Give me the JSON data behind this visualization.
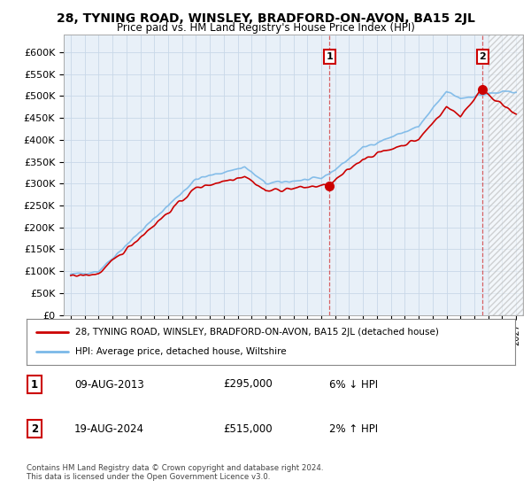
{
  "title": "28, TYNING ROAD, WINSLEY, BRADFORD-ON-AVON, BA15 2JL",
  "subtitle": "Price paid vs. HM Land Registry's House Price Index (HPI)",
  "ylabel_ticks": [
    "£0",
    "£50K",
    "£100K",
    "£150K",
    "£200K",
    "£250K",
    "£300K",
    "£350K",
    "£400K",
    "£450K",
    "£500K",
    "£550K",
    "£600K"
  ],
  "ylim": [
    0,
    620000
  ],
  "yticks": [
    0,
    50000,
    100000,
    150000,
    200000,
    250000,
    300000,
    350000,
    400000,
    450000,
    500000,
    550000,
    600000
  ],
  "sale1_year": 2013.6,
  "sale1_value": 295000,
  "sale2_year": 2024.6,
  "sale2_value": 515000,
  "hpi_color": "#7ab8e8",
  "price_color": "#cc0000",
  "grid_color": "#c8d8e8",
  "plot_bg": "#e8f0f8",
  "legend_label1": "28, TYNING ROAD, WINSLEY, BRADFORD-ON-AVON, BA15 2JL (detached house)",
  "legend_label2": "HPI: Average price, detached house, Wiltshire",
  "note1_label": "1",
  "note1_date": "09-AUG-2013",
  "note1_price": "£295,000",
  "note1_hpi": "6% ↓ HPI",
  "note2_label": "2",
  "note2_date": "19-AUG-2024",
  "note2_price": "£515,000",
  "note2_hpi": "2% ↑ HPI",
  "footer": "Contains HM Land Registry data © Crown copyright and database right 2024.\nThis data is licensed under the Open Government Licence v3.0."
}
